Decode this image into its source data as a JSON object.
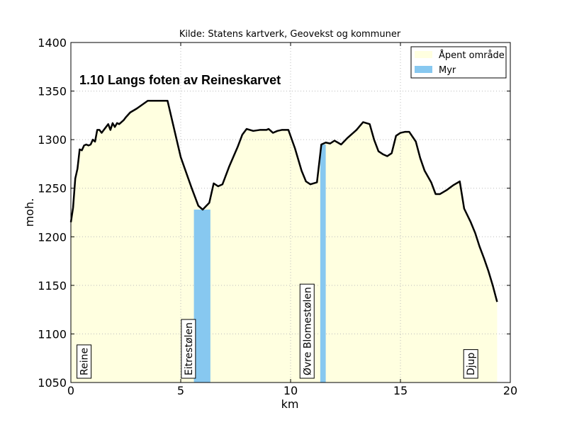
{
  "chart_data": {
    "type": "area",
    "source_text": "Kilde: Statens kartverk, Geovekst og kommuner",
    "title": "1.10 Langs foten av Reineskarvet",
    "xlabel": "km",
    "ylabel": "moh.",
    "xlim": [
      0,
      20
    ],
    "ylim": [
      1050,
      1400
    ],
    "xticks": [
      0,
      5,
      10,
      15,
      20
    ],
    "yticks": [
      1050,
      1100,
      1150,
      1200,
      1250,
      1300,
      1350,
      1400
    ],
    "grid": true,
    "legend_position": "top-right",
    "colors": {
      "open_area": "#ffffe0",
      "bog": "#87c8f0",
      "line": "#000000",
      "grid": "#bbbbbb"
    },
    "legend": [
      {
        "label": "Åpent område",
        "color": "#ffffe0"
      },
      {
        "label": "Myr",
        "color": "#87c8f0"
      }
    ],
    "series": [
      {
        "x": [
          0.0,
          0.1,
          0.2,
          0.3,
          0.4,
          0.5,
          0.6,
          0.7,
          0.8,
          0.9,
          1.0,
          1.1,
          1.2,
          1.3,
          1.4,
          1.5,
          1.6,
          1.7,
          1.8,
          1.9,
          2.0,
          2.1,
          2.2,
          2.3,
          2.4,
          2.5,
          2.7,
          3.0,
          3.5,
          3.8,
          4.1,
          4.4,
          5.0,
          5.5,
          5.8,
          6.0,
          6.3,
          6.5,
          6.7,
          6.9,
          7.2,
          7.6,
          7.8,
          8.0,
          8.3,
          8.6,
          8.9,
          9.0,
          9.2,
          9.4,
          9.6,
          9.9,
          10.2,
          10.5,
          10.7,
          10.9,
          11.2,
          11.4,
          11.6,
          11.8,
          12.0,
          12.3,
          12.6,
          13.0,
          13.3,
          13.6,
          13.8,
          14.0,
          14.2,
          14.4,
          14.6,
          14.8,
          15.0,
          15.2,
          15.4,
          15.7,
          15.9,
          16.1,
          16.4,
          16.6,
          16.8,
          17.1,
          17.4,
          17.7,
          17.9,
          18.2,
          18.4,
          18.6,
          18.8,
          19.0,
          19.2,
          19.4
        ],
        "y": [
          1215,
          1230,
          1260,
          1270,
          1290,
          1289,
          1294,
          1295,
          1294,
          1295,
          1300,
          1298,
          1310,
          1310,
          1307,
          1310,
          1313,
          1316,
          1310,
          1317,
          1313,
          1317,
          1316,
          1318,
          1320,
          1323,
          1328,
          1332,
          1340,
          1340,
          1340,
          1340,
          1282,
          1250,
          1232,
          1228,
          1235,
          1255,
          1252,
          1254,
          1272,
          1293,
          1305,
          1311,
          1309,
          1310,
          1310,
          1311,
          1307,
          1309,
          1310,
          1310,
          1291,
          1268,
          1257,
          1254,
          1256,
          1295,
          1297,
          1296,
          1299,
          1295,
          1302,
          1310,
          1318,
          1316,
          1300,
          1288,
          1285,
          1283,
          1286,
          1304,
          1307,
          1308,
          1308,
          1298,
          1281,
          1268,
          1256,
          1244,
          1244,
          1248,
          1253,
          1257,
          1229,
          1215,
          1204,
          1190,
          1178,
          1165,
          1150,
          1133
        ]
      }
    ],
    "bog_areas": [
      {
        "x_start": 5.6,
        "x_end": 6.35,
        "top": 1228
      },
      {
        "x_start": 11.35,
        "x_end": 11.6,
        "top": 1295
      }
    ],
    "places": [
      {
        "label": "Reine",
        "x": 0.6
      },
      {
        "label": "Eitrestølen",
        "x": 5.35
      },
      {
        "label": "Øvre Blomestølen",
        "x": 10.75
      },
      {
        "label": "Djup",
        "x": 18.2
      }
    ]
  }
}
